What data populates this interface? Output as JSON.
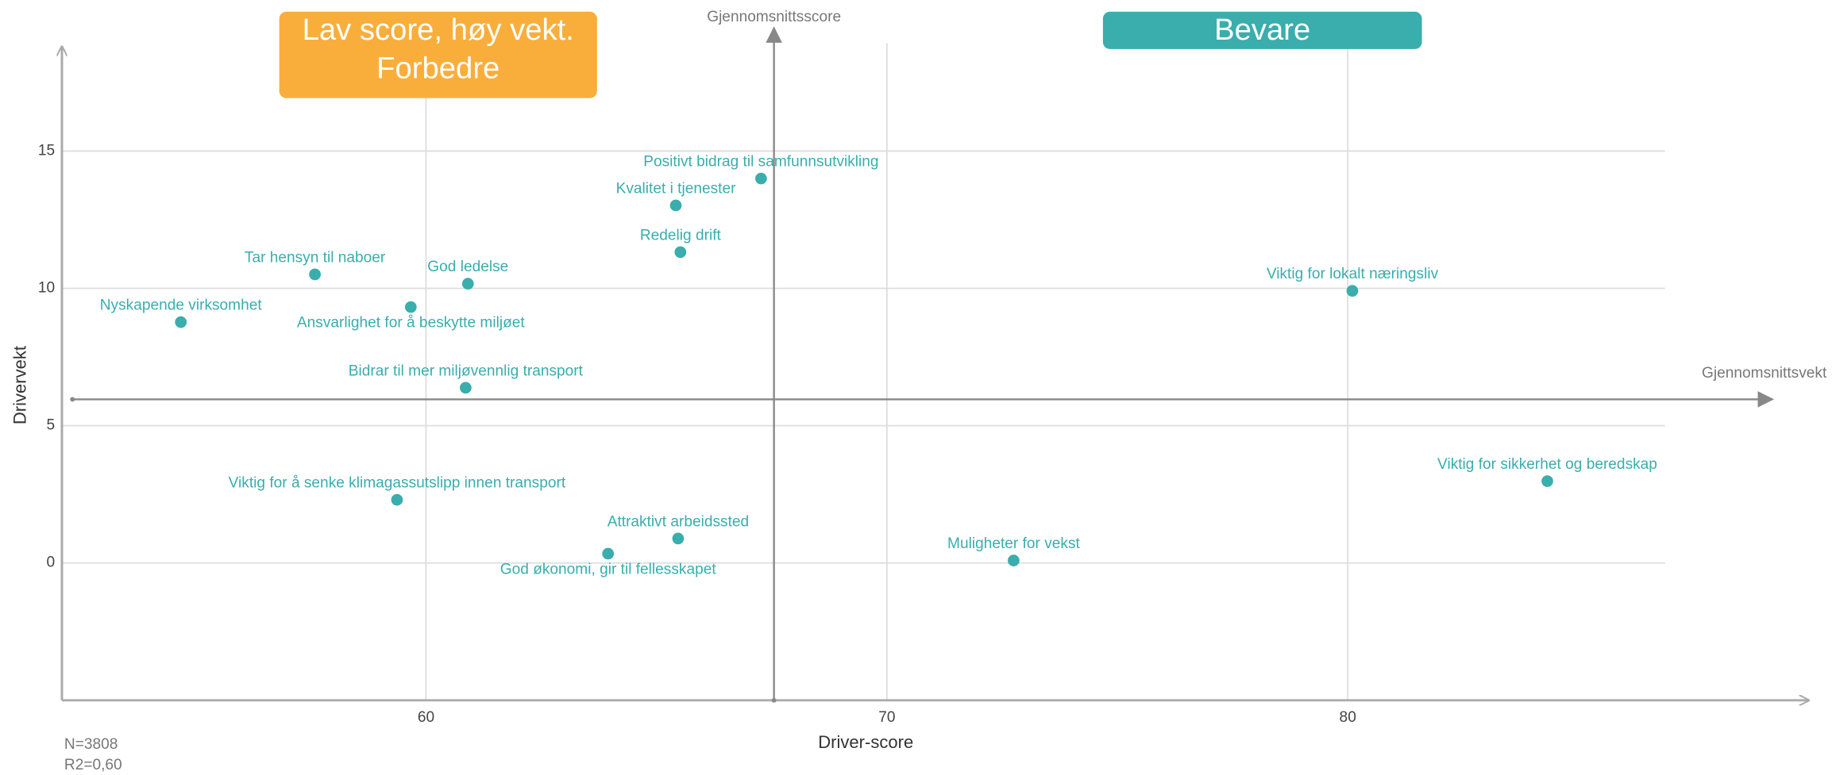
{
  "chart_data": {
    "type": "scatter",
    "color": "#3aadad",
    "xlabel": "Driver-score",
    "ylabel": "Drivervekt",
    "xlim": [
      52.1,
      90
    ],
    "ylim": [
      -5,
      18.8
    ],
    "xticks": [
      60,
      70,
      80
    ],
    "yticks": [
      0,
      5,
      10,
      15
    ],
    "grid": true,
    "mean_x": {
      "value": 67.55,
      "label": "Gjennomsnittsscore"
    },
    "mean_y": {
      "value": 5.96,
      "label": "Gjennomsnittsvekt"
    },
    "point_labels": [
      "Positivt bidrag til samfunnsutvikling",
      "Kvalitet i tjenester",
      "Redelig drift",
      "Tar hensyn til naboer",
      "God ledelse",
      "Ansvarlighet for å beskytte miljøet",
      "Nyskapende virksomhet",
      "Viktig for lokalt næringsliv",
      "Bidrar til mer miljøvennlig transport",
      "Viktig for sikkerhet og beredskap",
      "Viktig for å senke klimagassutslipp innen transport",
      "Attraktivt arbeidssted",
      "God økonomi, gir til fellesskapet",
      "Muligheter for vekst"
    ],
    "x": [
      67.27,
      65.42,
      65.52,
      57.59,
      60.91,
      59.67,
      54.68,
      80.1,
      60.86,
      84.33,
      59.37,
      65.47,
      63.95,
      72.75
    ],
    "values": [
      14.0,
      13.02,
      11.32,
      10.51,
      10.17,
      9.32,
      8.77,
      9.91,
      6.38,
      2.98,
      2.3,
      0.89,
      0.34,
      0.09
    ],
    "quadrant_labels": [
      {
        "lines": [
          "Lav score, høy vekt.",
          "Forbedre"
        ],
        "color": "#f9ae3b"
      },
      {
        "lines": [
          "Bevare"
        ],
        "color": "#3aadad"
      }
    ],
    "notes": [
      "N=3808",
      "R2=0,60"
    ]
  }
}
